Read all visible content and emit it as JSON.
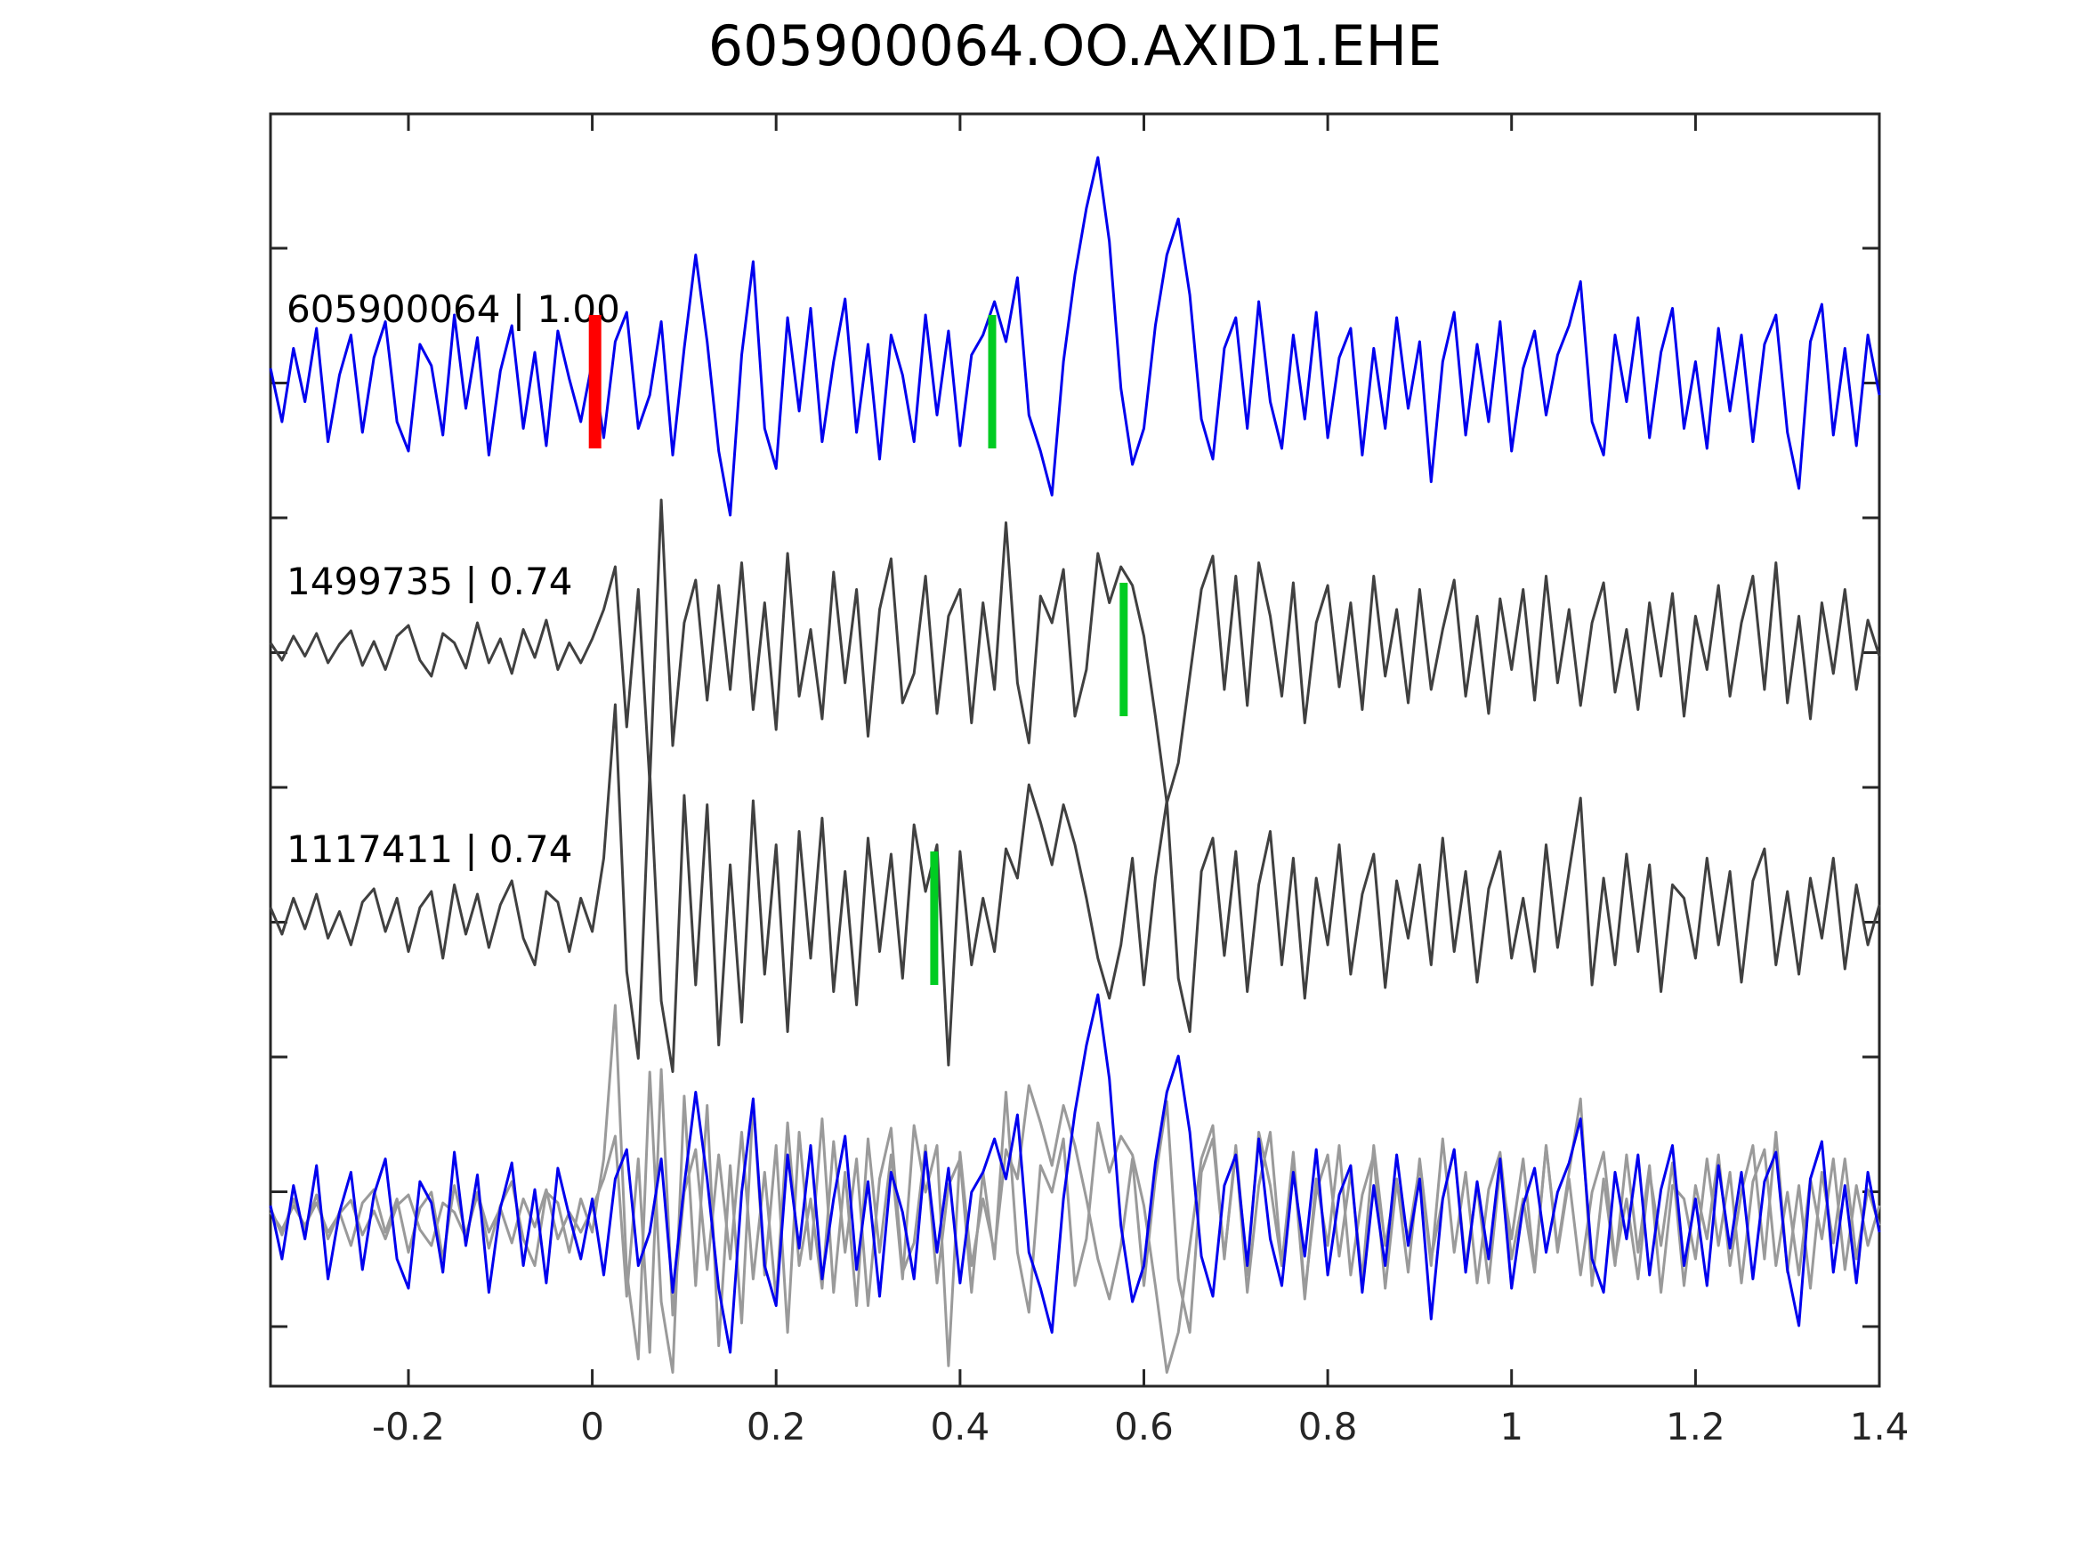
{
  "window": {
    "background": "#ffffff"
  },
  "chart_data": {
    "type": "line",
    "title": "605900064.OO.AXID1.EHE",
    "xlabel": "",
    "ylabel": "",
    "grid": false,
    "legend": "none",
    "xlim": [
      -0.35,
      1.4
    ],
    "x_ticks": [
      -0.2,
      0,
      0.2,
      0.4,
      0.6,
      0.8,
      1,
      1.2,
      1.4
    ],
    "x_tick_labels": [
      "-0.2",
      "0",
      "0.2",
      "0.4",
      "0.6",
      "0.8",
      "1",
      "1.2",
      "1.4"
    ],
    "t_start": -0.35,
    "t_step": 0.0125,
    "colors": {
      "target_blue": "#0000ee",
      "template_gray": "#404040",
      "overlay_gray": "#9a9a9a",
      "pick_red": "#ff0000",
      "pick_green": "#00cc22",
      "axis": "#262626"
    },
    "traces": [
      {
        "id": "605900064",
        "similarity": "1.00",
        "label": "605900064 | 1.00",
        "color_key": "target_blue",
        "values": [
          0.1,
          -0.3,
          0.25,
          -0.15,
          0.4,
          -0.45,
          0.05,
          0.35,
          -0.38,
          0.18,
          0.45,
          -0.3,
          -0.52,
          0.28,
          0.12,
          -0.4,
          0.5,
          -0.2,
          0.33,
          -0.55,
          0.08,
          0.42,
          -0.35,
          0.22,
          -0.48,
          0.38,
          0.02,
          -0.3,
          0.15,
          -0.42,
          0.3,
          0.52,
          -0.35,
          -0.1,
          0.45,
          -0.55,
          0.25,
          0.95,
          0.3,
          -0.52,
          -1.0,
          0.2,
          0.9,
          -0.35,
          -0.65,
          0.48,
          -0.22,
          0.55,
          -0.45,
          0.15,
          0.62,
          -0.38,
          0.28,
          -0.58,
          0.35,
          0.05,
          -0.45,
          0.5,
          -0.25,
          0.38,
          -0.48,
          0.2,
          0.35,
          0.6,
          0.3,
          0.78,
          -0.25,
          -0.52,
          -0.85,
          0.15,
          0.8,
          1.3,
          1.68,
          1.05,
          -0.05,
          -0.62,
          -0.35,
          0.42,
          0.95,
          1.22,
          0.65,
          -0.28,
          -0.58,
          0.25,
          0.48,
          -0.35,
          0.6,
          -0.15,
          -0.5,
          0.35,
          -0.28,
          0.52,
          -0.42,
          0.18,
          0.4,
          -0.55,
          0.25,
          -0.35,
          0.48,
          -0.2,
          0.3,
          -0.75,
          0.15,
          0.52,
          -0.4,
          0.28,
          -0.3,
          0.45,
          -0.52,
          0.1,
          0.38,
          -0.25,
          0.2,
          0.42,
          0.75,
          -0.3,
          -0.55,
          0.35,
          -0.15,
          0.48,
          -0.42,
          0.22,
          0.55,
          -0.35,
          0.15,
          -0.5,
          0.4,
          -0.22,
          0.35,
          -0.45,
          0.28,
          0.5,
          -0.38,
          -0.8,
          0.3,
          0.58,
          -0.4,
          0.25,
          -0.48,
          0.35,
          -0.1
        ]
      },
      {
        "id": "1499735",
        "similarity": "0.74",
        "label": "1499735 | 0.74",
        "color_key": "template_gray",
        "values": [
          0.05,
          -0.08,
          0.1,
          -0.05,
          0.12,
          -0.1,
          0.04,
          0.14,
          -0.12,
          0.06,
          -0.15,
          0.1,
          0.18,
          -0.08,
          -0.2,
          0.12,
          0.05,
          -0.14,
          0.2,
          -0.1,
          0.08,
          -0.18,
          0.15,
          -0.06,
          0.22,
          -0.15,
          0.05,
          -0.1,
          0.08,
          0.3,
          0.62,
          -0.58,
          0.45,
          -1.0,
          1.12,
          -0.72,
          0.2,
          0.52,
          -0.38,
          0.48,
          -0.3,
          0.65,
          -0.45,
          0.35,
          -0.6,
          0.72,
          -0.35,
          0.15,
          -0.52,
          0.58,
          -0.25,
          0.45,
          -0.65,
          0.3,
          0.68,
          -0.4,
          -0.18,
          0.55,
          -0.48,
          0.25,
          0.45,
          -0.55,
          0.35,
          -0.3,
          0.95,
          -0.25,
          -0.7,
          0.4,
          0.2,
          0.6,
          -0.5,
          -0.15,
          0.72,
          0.35,
          0.62,
          0.48,
          0.1,
          -0.5,
          -1.15,
          -0.85,
          -0.2,
          0.45,
          0.7,
          -0.3,
          0.55,
          -0.42,
          0.65,
          0.25,
          -0.35,
          0.5,
          -0.55,
          0.2,
          0.48,
          -0.28,
          0.35,
          -0.45,
          0.55,
          -0.2,
          0.3,
          -0.4,
          0.45,
          -0.3,
          0.15,
          0.52,
          -0.35,
          0.25,
          -0.48,
          0.38,
          -0.15,
          0.45,
          -0.38,
          0.55,
          -0.25,
          0.3,
          -0.42,
          0.2,
          0.5,
          -0.32,
          0.15,
          -0.45,
          0.35,
          -0.2,
          0.42,
          -0.5,
          0.25,
          -0.15,
          0.48,
          -0.35,
          0.2,
          0.55,
          -0.3,
          0.65,
          -0.4,
          0.25,
          -0.52,
          0.35,
          -0.18,
          0.45,
          -0.3,
          0.22,
          -0.05
        ]
      },
      {
        "id": "1117411",
        "similarity": "0.74",
        "label": "1117411 | 0.74",
        "color_key": "template_gray",
        "values": [
          0.08,
          -0.12,
          0.15,
          -0.08,
          0.18,
          -0.15,
          0.05,
          -0.2,
          0.12,
          0.22,
          -0.1,
          0.15,
          -0.25,
          0.08,
          0.2,
          -0.3,
          0.25,
          -0.12,
          0.18,
          -0.22,
          0.1,
          0.28,
          -0.15,
          -0.35,
          0.2,
          0.12,
          -0.25,
          0.15,
          -0.1,
          0.45,
          1.6,
          -0.4,
          -1.05,
          1.1,
          -0.62,
          -1.15,
          0.92,
          -0.5,
          0.85,
          -0.95,
          0.4,
          -0.78,
          0.88,
          -0.42,
          0.55,
          -0.85,
          0.65,
          -0.3,
          0.75,
          -0.55,
          0.35,
          -0.65,
          0.6,
          -0.25,
          0.48,
          -0.45,
          0.7,
          0.2,
          0.55,
          -1.1,
          0.5,
          -0.35,
          0.15,
          -0.25,
          0.52,
          0.3,
          1.0,
          0.72,
          0.4,
          0.85,
          0.55,
          0.15,
          -0.3,
          -0.6,
          -0.2,
          0.45,
          -0.5,
          0.3,
          0.88,
          -0.45,
          -0.85,
          0.35,
          0.6,
          -0.28,
          0.5,
          -0.55,
          0.25,
          0.65,
          -0.35,
          0.45,
          -0.6,
          0.3,
          -0.2,
          0.55,
          -0.42,
          0.18,
          0.48,
          -0.52,
          0.28,
          -0.15,
          0.4,
          -0.35,
          0.6,
          -0.25,
          0.35,
          -0.48,
          0.22,
          0.5,
          -0.3,
          0.15,
          -0.4,
          0.55,
          -0.22,
          0.35,
          0.9,
          -0.5,
          0.3,
          -0.35,
          0.48,
          -0.25,
          0.4,
          -0.55,
          0.25,
          0.15,
          -0.3,
          0.45,
          -0.2,
          0.35,
          -0.48,
          0.28,
          0.52,
          -0.35,
          0.2,
          -0.42,
          0.3,
          -0.15,
          0.45,
          -0.38,
          0.25,
          -0.2,
          0.1
        ]
      }
    ],
    "overlay_row": {
      "description": "all three traces overlaid at bottom",
      "order": [
        "1499735",
        "1117411",
        "605900064"
      ],
      "color_keys": [
        "overlay_gray",
        "overlay_gray",
        "target_blue"
      ]
    },
    "markers": [
      {
        "trace": 0,
        "t": 0.003,
        "color_key": "pick_red",
        "kind": "pick-marker-red"
      },
      {
        "trace": 0,
        "t": 0.435,
        "color_key": "pick_green",
        "kind": "pick-marker-green"
      },
      {
        "trace": 1,
        "t": 0.578,
        "color_key": "pick_green",
        "kind": "pick-marker-green"
      },
      {
        "trace": 2,
        "t": 0.372,
        "color_key": "pick_green",
        "kind": "pick-marker-green"
      }
    ]
  }
}
